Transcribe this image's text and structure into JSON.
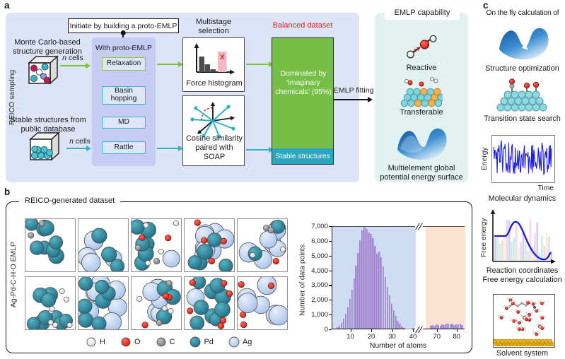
{
  "figure": {
    "a": {
      "panel_label": "a",
      "reico_sampling": "REICO sampling",
      "initiate": "Initiate by building a proto-EMLP",
      "monte_carlo": "Monte Carlo-based structure generation",
      "stable_public": "Stable structures from public database",
      "n_cells": "n cells",
      "with_proto": "With proto-EMLP",
      "steps": [
        {
          "label": "Relaxation",
          "accent": "#8dc63f"
        },
        {
          "label": "Basin hopping",
          "accent": "#35b4c9"
        },
        {
          "label": "MD",
          "accent": "#35b4c9"
        },
        {
          "label": "Rattle",
          "accent": "#35b4c9"
        }
      ],
      "multistage": "Multistage selection",
      "force_hist_caption": "Force histogram",
      "x_mark": "X",
      "cosine_caption": "Cosine similarity paired with SOAP",
      "balanced": "Balanced dataset",
      "dominated": "Dominated by ‘imaginary chemicals’ (95%)",
      "stable_strip": "Stable structures",
      "emlp_fitting": "EMLP fitting",
      "capability": {
        "title": "EMLP capability",
        "reactive": "Reactive",
        "transferable": "Transferable",
        "pes": "Multielement global potential energy surface"
      }
    },
    "b": {
      "panel_label": "b",
      "dataset_title": "REICO-generated dataset",
      "side_label": "Ag-Pd-C-H-O EMLP",
      "legend": [
        {
          "symbol": "H",
          "element": "H"
        },
        {
          "symbol": "O",
          "element": "O"
        },
        {
          "symbol": "C",
          "element": "C"
        },
        {
          "symbol": "Pd",
          "element": "Pd"
        },
        {
          "symbol": "Ag",
          "element": "Ag"
        }
      ],
      "structure_boxes": [
        {
          "Pd": 9,
          "C": 2
        },
        {
          "Ag": 4,
          "Pd": 4
        },
        {
          "Pd": 6,
          "Ag": 1,
          "O": 2,
          "H": 4,
          "C": 2
        },
        {
          "Ag": 8,
          "Pd": 5,
          "O": 4
        },
        {
          "Ag": 7,
          "Pd": 2,
          "O": 1,
          "C": 2,
          "H": 2
        },
        {
          "Pd": 9,
          "H": 7
        },
        {
          "Ag": 9,
          "Pd": 7
        },
        {
          "Ag": 6,
          "Pd": 3,
          "O": 3,
          "C": 2,
          "H": 3
        },
        {
          "Pd": 9,
          "O": 6,
          "Ag": 1
        },
        {
          "Ag": 6,
          "O": 4
        }
      ]
    },
    "c": {
      "panel_label": "c",
      "title": "On the fly calculation of",
      "captions": {
        "structure_optimization": "Structure optimization",
        "transition_state": "Transition state search",
        "molecular_dynamics": "Molecular dynamics",
        "free_energy": "Free energy calculation",
        "solvent": "Solvent system"
      },
      "md": {
        "ylabel": "Energy",
        "xlabel": "Time"
      },
      "fe": {
        "ylabel": "Free energy",
        "xlabel": "Reaction coordinates"
      }
    }
  },
  "chart_data": {
    "type": "bar",
    "title": "",
    "xlabel": "Number of atoms",
    "ylabel": "Number of data points",
    "ylim": [
      0,
      7000
    ],
    "yticks": [
      "0",
      "1,000",
      "2,000",
      "3,000",
      "4,000",
      "5,000",
      "6,000",
      "7,000"
    ],
    "axis_break": true,
    "regions": {
      "main": {
        "xlim": [
          1,
          41
        ],
        "color": "#cedcf4"
      },
      "gap": {
        "color": "#ffffff"
      },
      "tail": {
        "xlim": [
          64,
          84
        ],
        "color": "#fbe3cf"
      }
    },
    "xticks_main": [
      10,
      20,
      30,
      40
    ],
    "xticks_tail": [
      70,
      80
    ],
    "bar_color": "#b29cd9",
    "bins_main": {
      "start": 3,
      "bin_width": 1,
      "values": [
        80,
        200,
        400,
        650,
        1000,
        1450,
        2000,
        2650,
        3400,
        4250,
        5150,
        6000,
        6650,
        6900,
        6750,
        6500,
        6450,
        6150,
        5600,
        5100,
        5250,
        4850,
        4200,
        3500,
        2850,
        2250,
        1700,
        1250,
        850,
        550,
        320,
        160,
        60,
        20,
        8,
        3,
        0,
        0
      ]
    },
    "bins_tail": {
      "start": 66,
      "bin_width": 1,
      "values": [
        180,
        260,
        200,
        300,
        240,
        200,
        290,
        230,
        320,
        360,
        280,
        330,
        260,
        310,
        280,
        360,
        220
      ]
    }
  },
  "colors": {
    "panel_a_bg": "#dee4f8",
    "proto_bg": "#c7cdf2",
    "step_fill": "#dde6f9",
    "accent_green": "#7cc242",
    "accent_teal": "#2fb0c4",
    "balanced_red": "#e0231a",
    "dataset_green": "#74bf44",
    "stable_strip_teal": "#2aa6bf",
    "capability_bg": "#e2f2f0",
    "elements": {
      "H": "#f2f2f2",
      "O": "#e0231a",
      "C": "#8f8f8f",
      "Pd": "#1f7e95",
      "Ag": "#b9cfee"
    }
  }
}
